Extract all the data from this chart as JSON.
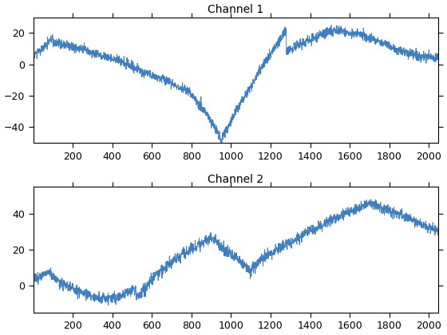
{
  "title1": "Channel 1",
  "title2": "Channel 2",
  "n_points": 2048,
  "seed": 42,
  "line_color": "#3F7FBF",
  "line_width": 0.7,
  "background_color": "#ffffff",
  "xlim": [
    1,
    2048
  ],
  "ylim1": [
    -50,
    30
  ],
  "ylim2": [
    -15,
    55
  ],
  "xticks": [
    200,
    400,
    600,
    800,
    1000,
    1200,
    1400,
    1600,
    1800,
    2000
  ],
  "yticks1": [
    -40,
    -20,
    0,
    20
  ],
  "yticks2": [
    0,
    20,
    40
  ],
  "figsize": [
    5.6,
    4.2
  ],
  "dpi": 100
}
